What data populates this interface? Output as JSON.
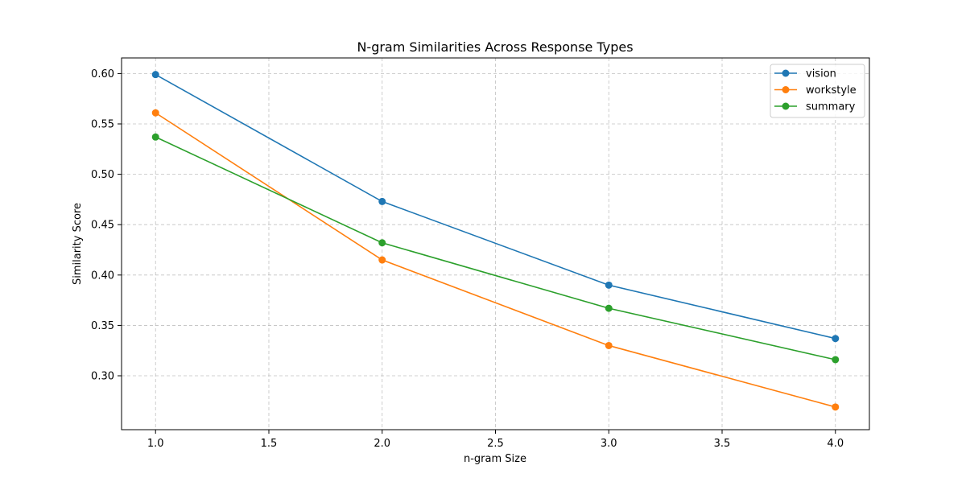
{
  "chart_data": {
    "type": "line",
    "title": "N-gram Similarities Across Response Types",
    "xlabel": "n-gram Size",
    "ylabel": "Similarity Score",
    "xlim": [
      0.85,
      4.15
    ],
    "ylim": [
      0.2465,
      0.6155
    ],
    "x_ticks": [
      1.0,
      1.5,
      2.0,
      2.5,
      3.0,
      3.5,
      4.0
    ],
    "x_tick_labels": [
      "1.0",
      "1.5",
      "2.0",
      "2.5",
      "3.0",
      "3.5",
      "4.0"
    ],
    "y_ticks": [
      0.3,
      0.35,
      0.4,
      0.45,
      0.5,
      0.55,
      0.6
    ],
    "y_tick_labels": [
      "0.30",
      "0.35",
      "0.40",
      "0.45",
      "0.50",
      "0.55",
      "0.60"
    ],
    "grid": true,
    "grid_style": "dashed",
    "legend_position": "top-right",
    "x": [
      1,
      2,
      3,
      4
    ],
    "series": [
      {
        "name": "vision",
        "color": "#1f77b4",
        "values": [
          0.599,
          0.473,
          0.39,
          0.337
        ]
      },
      {
        "name": "workstyle",
        "color": "#ff7f0e",
        "values": [
          0.561,
          0.415,
          0.33,
          0.269
        ]
      },
      {
        "name": "summary",
        "color": "#2ca02c",
        "values": [
          0.537,
          0.432,
          0.367,
          0.316
        ]
      }
    ]
  }
}
